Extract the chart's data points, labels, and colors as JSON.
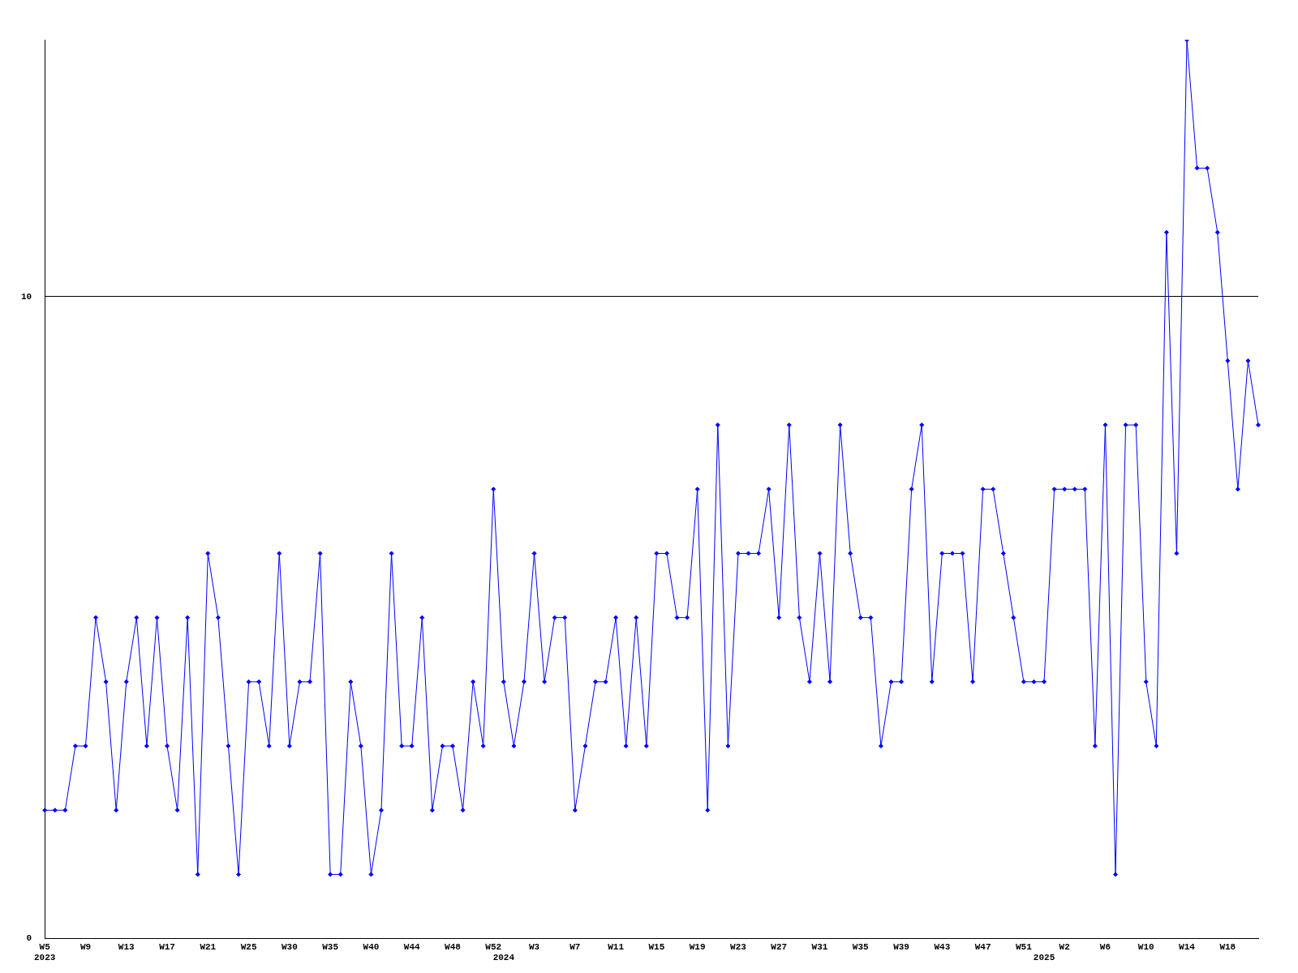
{
  "chart_data": {
    "type": "line",
    "categories": [
      "W5\n2023",
      null,
      null,
      null,
      "W9",
      null,
      null,
      null,
      "W13",
      null,
      null,
      null,
      "W17",
      null,
      null,
      null,
      "W21",
      null,
      null,
      null,
      "W25",
      null,
      null,
      null,
      "W30",
      null,
      null,
      null,
      "W35",
      null,
      null,
      null,
      "W40",
      null,
      null,
      null,
      "W44",
      null,
      null,
      null,
      "W48",
      null,
      null,
      null,
      "W52",
      "\n2024",
      null,
      null,
      "W3",
      null,
      null,
      null,
      "W7",
      null,
      null,
      null,
      "W11",
      null,
      null,
      null,
      "W15",
      null,
      null,
      null,
      "W19",
      null,
      null,
      null,
      "W23",
      null,
      null,
      null,
      "W27",
      null,
      null,
      null,
      "W31",
      null,
      null,
      null,
      "W35",
      null,
      null,
      null,
      "W39",
      null,
      null,
      null,
      "W43",
      null,
      null,
      null,
      "W47",
      null,
      null,
      null,
      "W51",
      null,
      "\n2025",
      null,
      "W2",
      null,
      null,
      null,
      "W6",
      null,
      null,
      null,
      "W10",
      null,
      null,
      null,
      "W14",
      null,
      null,
      null,
      "W18",
      null,
      null,
      null
    ],
    "series": [
      {
        "color": "#0000ff",
        "values": [
          2,
          2,
          2,
          3,
          3,
          5,
          4,
          2,
          4,
          5,
          3,
          5,
          3,
          2,
          5,
          1,
          6,
          5,
          3,
          1,
          4,
          4,
          3,
          6,
          3,
          4,
          4,
          6,
          1,
          1,
          4,
          3,
          1,
          2,
          6,
          3,
          3,
          5,
          2,
          3,
          3,
          2,
          4,
          3,
          7,
          4,
          3,
          4,
          6,
          4,
          5,
          5,
          2,
          3,
          4,
          4,
          5,
          3,
          5,
          3,
          6,
          6,
          5,
          5,
          7,
          2,
          8,
          3,
          6,
          6,
          6,
          7,
          5,
          8,
          5,
          4,
          6,
          4,
          8,
          6,
          5,
          5,
          3,
          4,
          4,
          7,
          8,
          4,
          6,
          6,
          6,
          4,
          7,
          7,
          6,
          5,
          4,
          4,
          4,
          7,
          7,
          7,
          7,
          3,
          8,
          1,
          8,
          8,
          4,
          3,
          11,
          6,
          14,
          12,
          12,
          11,
          9,
          7,
          9,
          8
        ]
      }
    ],
    "ylim": [
      0,
      14
    ],
    "yticks": [
      0,
      10
    ],
    "grid": "y",
    "marker": "diamond",
    "line_style": "solid"
  }
}
